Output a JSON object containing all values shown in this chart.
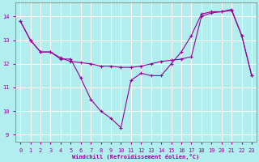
{
  "xlabel": "Windchill (Refroidissement éolien,°C)",
  "bg_color": "#b2eeee",
  "line_color": "#990099",
  "grid_color": "#ffffff",
  "xlim": [
    -0.5,
    23.5
  ],
  "ylim": [
    8.7,
    14.6
  ],
  "xticks": [
    0,
    1,
    2,
    3,
    4,
    5,
    6,
    7,
    8,
    9,
    10,
    11,
    12,
    13,
    14,
    15,
    16,
    17,
    18,
    19,
    20,
    21,
    22,
    23
  ],
  "yticks": [
    9,
    10,
    11,
    12,
    13,
    14
  ],
  "line1_x": [
    0,
    1,
    2,
    3,
    4,
    5,
    6,
    7,
    8,
    9,
    10,
    11,
    12,
    13,
    14,
    15,
    16,
    17,
    18,
    19,
    20,
    21,
    22,
    23
  ],
  "line1_y": [
    13.8,
    13.0,
    12.5,
    12.5,
    12.2,
    12.2,
    11.4,
    10.5,
    10.0,
    9.7,
    9.3,
    11.3,
    11.6,
    11.5,
    11.5,
    12.0,
    12.5,
    13.2,
    14.1,
    14.2,
    14.2,
    14.3,
    13.2,
    11.5
  ],
  "line2_x": [
    0,
    1,
    2,
    3,
    4,
    5,
    6,
    7,
    8,
    9,
    10,
    11,
    12,
    13,
    14,
    15,
    16,
    17,
    18,
    19,
    20,
    21,
    22,
    23
  ],
  "line2_y": [
    13.8,
    13.0,
    12.5,
    12.5,
    12.25,
    12.1,
    12.05,
    12.0,
    11.9,
    11.9,
    11.85,
    11.85,
    11.9,
    12.0,
    12.1,
    12.15,
    12.2,
    12.3,
    14.0,
    14.15,
    14.2,
    14.25,
    13.2,
    11.5
  ]
}
